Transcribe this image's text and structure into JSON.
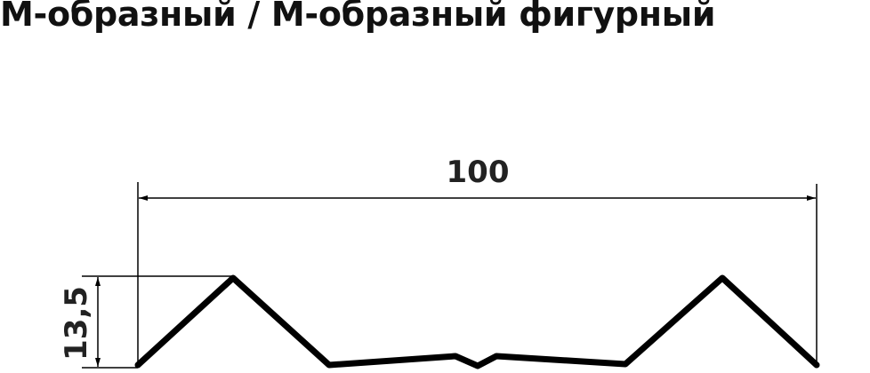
{
  "title": "М-образный / М-образный фигурный",
  "dimensions": {
    "width_label": "100",
    "height_label": "13,5"
  },
  "colors": {
    "line": "#000000",
    "text": "#222222"
  }
}
